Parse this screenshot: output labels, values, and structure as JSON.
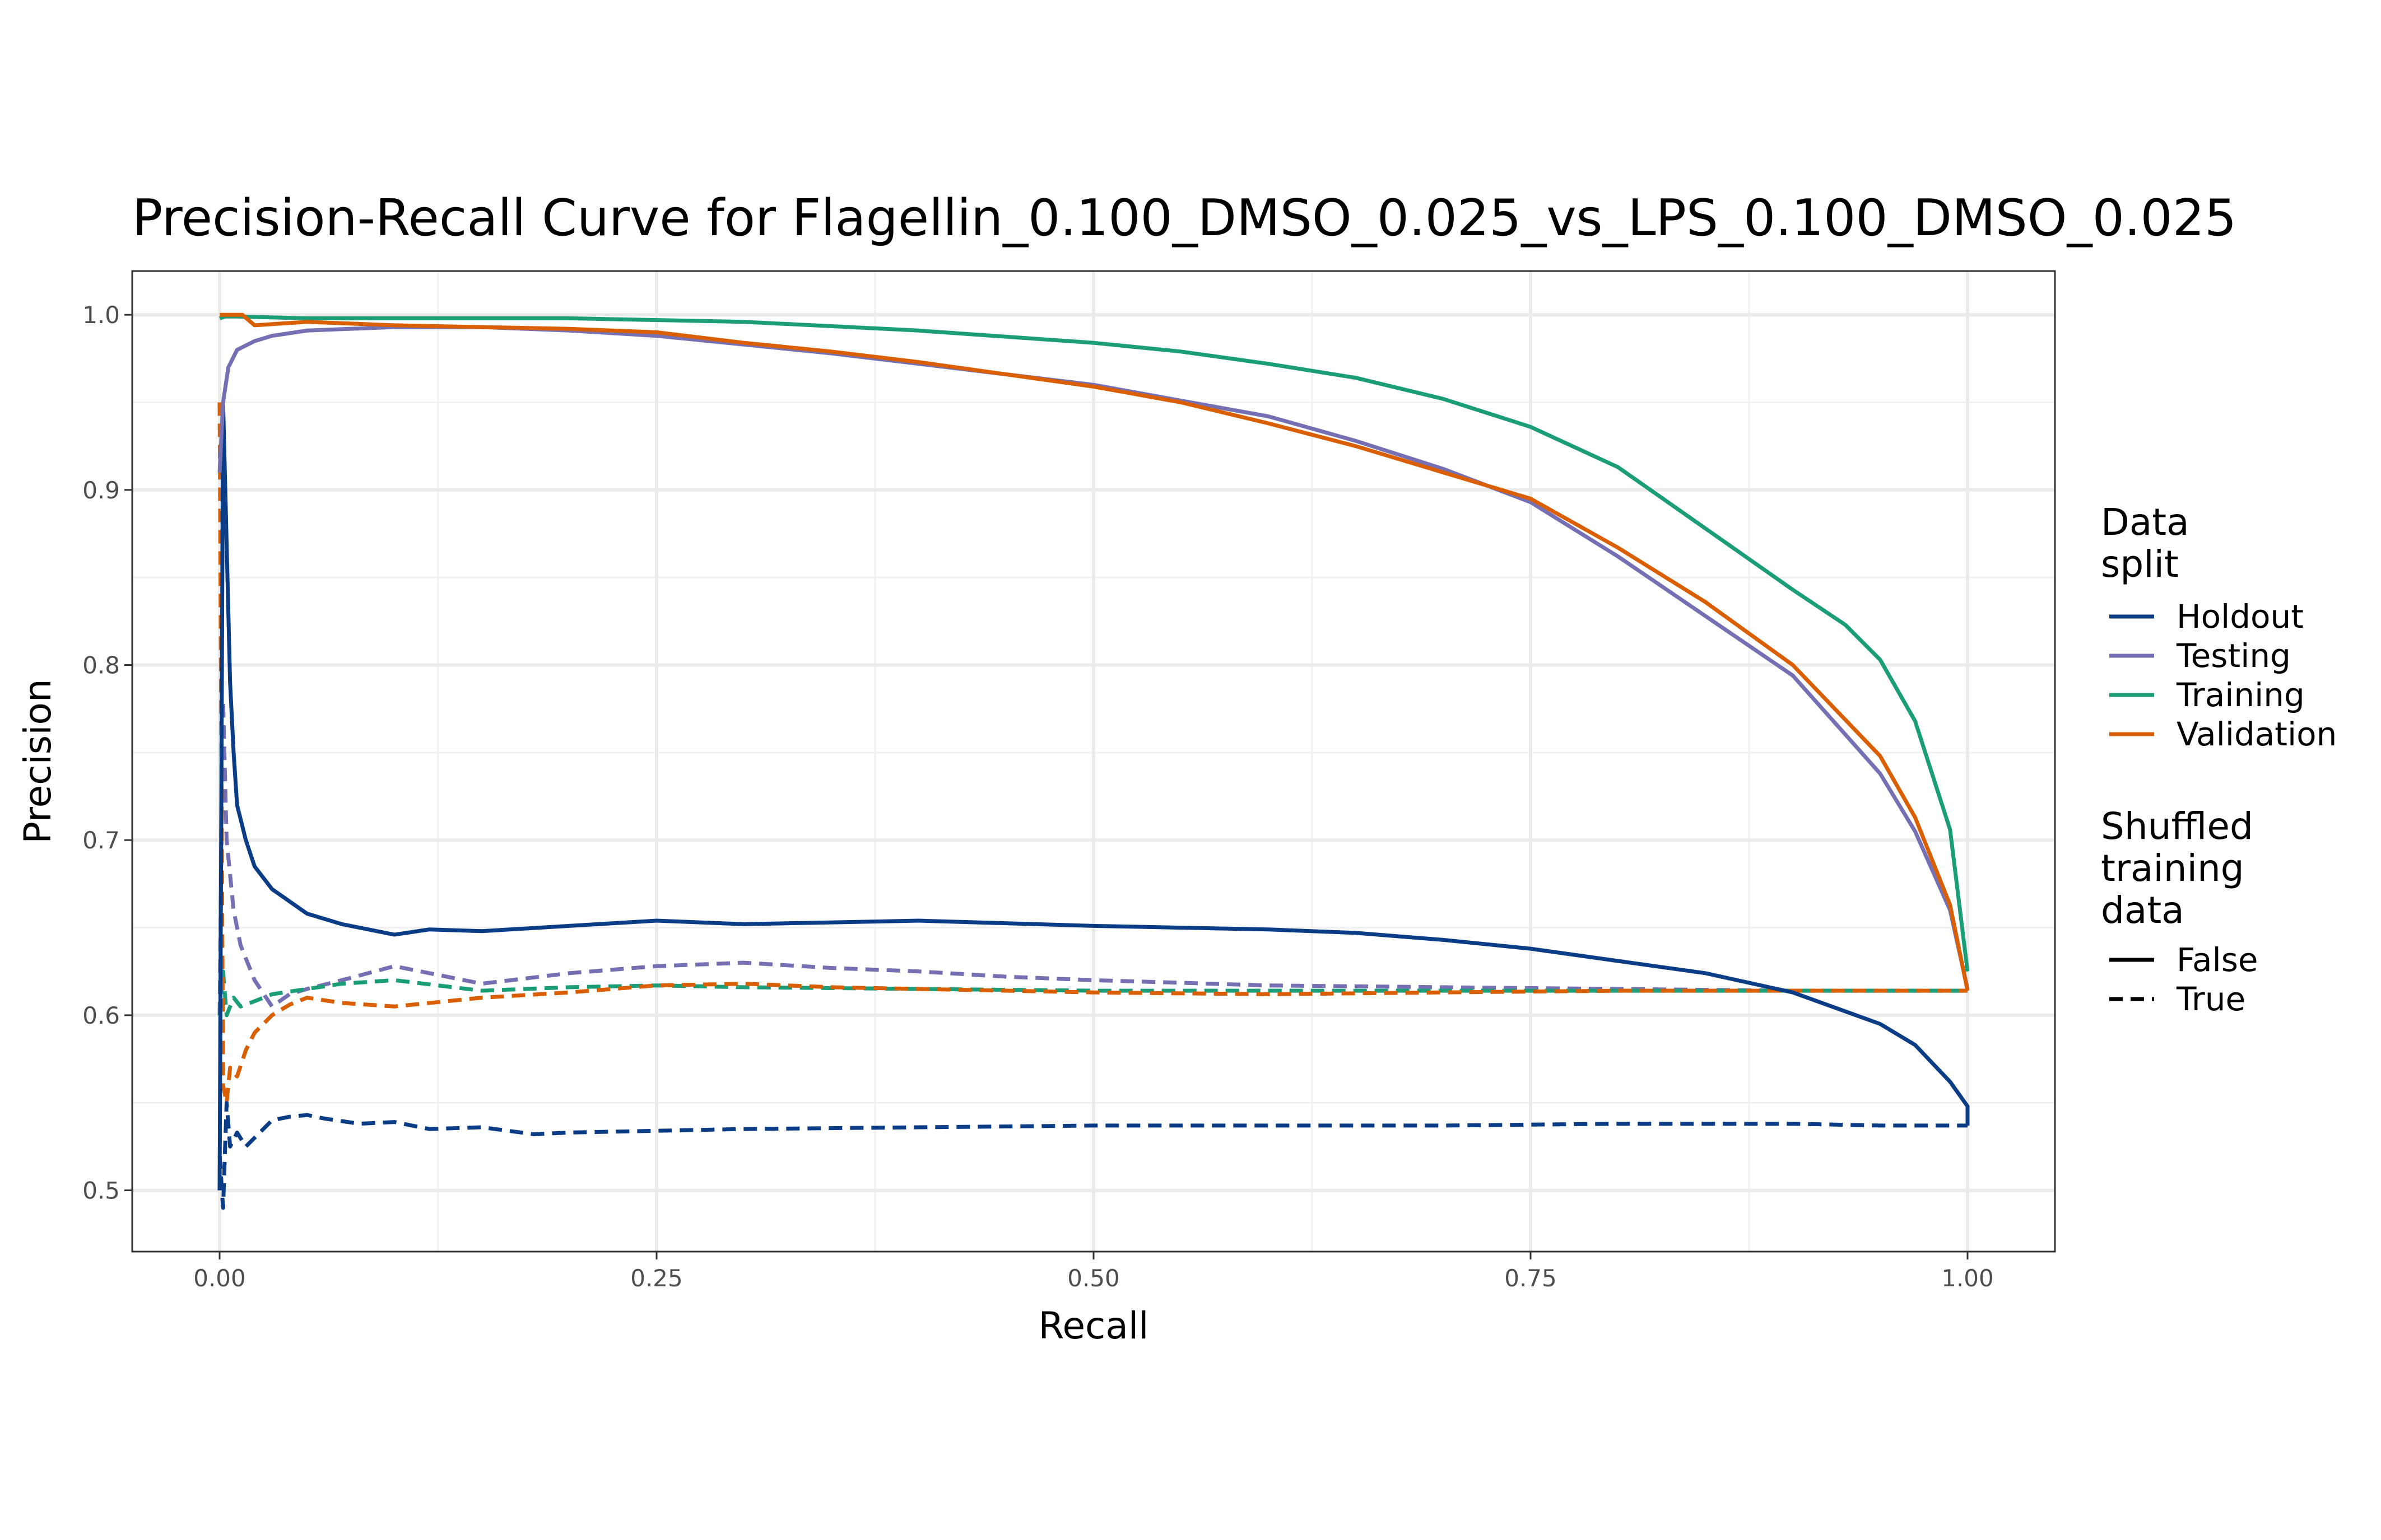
{
  "chart_data": {
    "type": "line",
    "title": "Precision-Recall Curve for Flagellin_0.100_DMSO_0.025_vs_LPS_0.100_DMSO_0.025",
    "xlabel": "Recall",
    "ylabel": "Precision",
    "xlim": [
      -0.05,
      1.05
    ],
    "ylim": [
      0.465,
      1.025
    ],
    "x_ticks": [
      0,
      0.25,
      0.5,
      0.75,
      1
    ],
    "x_tick_labels": [
      "0.00",
      "0.25",
      "0.50",
      "0.75",
      "1.00"
    ],
    "y_ticks": [
      0.5,
      0.6,
      0.7,
      0.8,
      0.9,
      1.0
    ],
    "y_tick_labels": [
      "0.5",
      "0.6",
      "0.7",
      "0.8",
      "0.9",
      "1.0"
    ],
    "grid": true,
    "legend": {
      "position": "right",
      "color_title": [
        "Data",
        "split"
      ],
      "linetype_title": [
        "Shuffled",
        "training",
        "data"
      ],
      "linetype_entries": [
        {
          "label": "False",
          "dash": "solid"
        },
        {
          "label": "True",
          "dash": "dashed"
        }
      ]
    },
    "series": [
      {
        "name": "Holdout",
        "shuffled": "False",
        "color": "#0b3d86",
        "x": [
          0,
          0.002,
          0.004,
          0.006,
          0.008,
          0.01,
          0.015,
          0.02,
          0.03,
          0.04,
          0.05,
          0.07,
          0.1,
          0.12,
          0.15,
          0.2,
          0.25,
          0.3,
          0.4,
          0.5,
          0.6,
          0.65,
          0.7,
          0.75,
          0.8,
          0.85,
          0.9,
          0.95,
          0.97,
          0.99,
          1.0,
          1.0
        ],
        "y": [
          0.5,
          0.95,
          0.87,
          0.79,
          0.75,
          0.72,
          0.7,
          0.685,
          0.672,
          0.665,
          0.658,
          0.652,
          0.646,
          0.649,
          0.648,
          0.651,
          0.654,
          0.652,
          0.654,
          0.651,
          0.649,
          0.647,
          0.643,
          0.638,
          0.631,
          0.624,
          0.613,
          0.595,
          0.583,
          0.562,
          0.548,
          0.537
        ]
      },
      {
        "name": "Testing",
        "shuffled": "False",
        "color": "#7570b3",
        "x": [
          0,
          0.002,
          0.005,
          0.01,
          0.02,
          0.03,
          0.05,
          0.1,
          0.15,
          0.2,
          0.25,
          0.3,
          0.35,
          0.4,
          0.45,
          0.5,
          0.55,
          0.6,
          0.65,
          0.7,
          0.75,
          0.8,
          0.85,
          0.9,
          0.95,
          0.97,
          0.99,
          1.0
        ],
        "y": [
          0.91,
          0.95,
          0.97,
          0.98,
          0.985,
          0.988,
          0.991,
          0.993,
          0.993,
          0.991,
          0.988,
          0.983,
          0.978,
          0.972,
          0.966,
          0.96,
          0.951,
          0.942,
          0.928,
          0.912,
          0.893,
          0.862,
          0.828,
          0.794,
          0.738,
          0.705,
          0.66,
          0.615
        ]
      },
      {
        "name": "Training",
        "shuffled": "False",
        "color": "#1b9e77",
        "x": [
          0,
          0.003,
          0.01,
          0.05,
          0.1,
          0.2,
          0.3,
          0.4,
          0.5,
          0.55,
          0.6,
          0.65,
          0.7,
          0.75,
          0.8,
          0.85,
          0.9,
          0.93,
          0.95,
          0.97,
          0.99,
          1.0
        ],
        "y": [
          0.998,
          0.999,
          0.999,
          0.998,
          0.998,
          0.998,
          0.996,
          0.991,
          0.984,
          0.979,
          0.972,
          0.964,
          0.952,
          0.936,
          0.913,
          0.878,
          0.843,
          0.823,
          0.803,
          0.768,
          0.706,
          0.625
        ]
      },
      {
        "name": "Validation",
        "shuffled": "False",
        "color": "#d95f02",
        "x": [
          0,
          0.003,
          0.013,
          0.02,
          0.05,
          0.1,
          0.15,
          0.2,
          0.25,
          0.3,
          0.35,
          0.4,
          0.45,
          0.5,
          0.55,
          0.6,
          0.65,
          0.7,
          0.75,
          0.8,
          0.85,
          0.9,
          0.95,
          0.97,
          0.99,
          1.0
        ],
        "y": [
          1.0,
          1.0,
          1.0,
          0.994,
          0.996,
          0.994,
          0.993,
          0.992,
          0.99,
          0.984,
          0.979,
          0.973,
          0.966,
          0.959,
          0.95,
          0.938,
          0.925,
          0.91,
          0.895,
          0.867,
          0.836,
          0.8,
          0.748,
          0.713,
          0.663,
          0.614
        ]
      },
      {
        "name": "Holdout",
        "shuffled": "True",
        "color": "#0b3d86",
        "x": [
          0,
          0.002,
          0.004,
          0.006,
          0.01,
          0.015,
          0.02,
          0.03,
          0.04,
          0.05,
          0.06,
          0.08,
          0.1,
          0.12,
          0.15,
          0.18,
          0.2,
          0.3,
          0.4,
          0.5,
          0.6,
          0.65,
          0.7,
          0.8,
          0.85,
          0.9,
          0.95,
          1.0
        ],
        "y": [
          0.52,
          0.49,
          0.55,
          0.525,
          0.533,
          0.525,
          0.53,
          0.54,
          0.542,
          0.543,
          0.541,
          0.538,
          0.539,
          0.535,
          0.536,
          0.532,
          0.533,
          0.535,
          0.536,
          0.537,
          0.537,
          0.537,
          0.537,
          0.538,
          0.538,
          0.538,
          0.537,
          0.537
        ]
      },
      {
        "name": "Testing",
        "shuffled": "True",
        "color": "#7570b3",
        "x": [
          0,
          0.002,
          0.004,
          0.008,
          0.012,
          0.02,
          0.03,
          0.04,
          0.05,
          0.07,
          0.1,
          0.15,
          0.2,
          0.25,
          0.3,
          0.35,
          0.4,
          0.45,
          0.5,
          0.6,
          0.7,
          0.8,
          0.9,
          1.0
        ],
        "y": [
          0.6,
          0.78,
          0.7,
          0.66,
          0.64,
          0.62,
          0.605,
          0.612,
          0.615,
          0.62,
          0.628,
          0.618,
          0.624,
          0.628,
          0.63,
          0.627,
          0.625,
          0.622,
          0.62,
          0.617,
          0.616,
          0.615,
          0.614,
          0.614
        ]
      },
      {
        "name": "Training",
        "shuffled": "True",
        "color": "#1b9e77",
        "x": [
          0,
          0.002,
          0.004,
          0.008,
          0.012,
          0.02,
          0.03,
          0.05,
          0.07,
          0.1,
          0.15,
          0.2,
          0.25,
          0.3,
          0.4,
          0.5,
          0.6,
          0.7,
          0.8,
          0.9,
          1.0
        ],
        "y": [
          0.6,
          0.625,
          0.6,
          0.61,
          0.605,
          0.608,
          0.612,
          0.615,
          0.618,
          0.62,
          0.614,
          0.616,
          0.617,
          0.616,
          0.615,
          0.614,
          0.614,
          0.614,
          0.614,
          0.614,
          0.614
        ]
      },
      {
        "name": "Validation",
        "shuffled": "True",
        "color": "#d95f02",
        "x": [
          0,
          0.002,
          0.004,
          0.006,
          0.01,
          0.015,
          0.02,
          0.03,
          0.04,
          0.05,
          0.07,
          0.1,
          0.15,
          0.2,
          0.25,
          0.3,
          0.35,
          0.4,
          0.5,
          0.6,
          0.7,
          0.8,
          0.9,
          1.0
        ],
        "y": [
          0.95,
          0.56,
          0.55,
          0.57,
          0.565,
          0.58,
          0.59,
          0.6,
          0.606,
          0.61,
          0.607,
          0.605,
          0.61,
          0.613,
          0.617,
          0.618,
          0.616,
          0.615,
          0.613,
          0.612,
          0.613,
          0.614,
          0.614,
          0.614
        ]
      }
    ]
  }
}
